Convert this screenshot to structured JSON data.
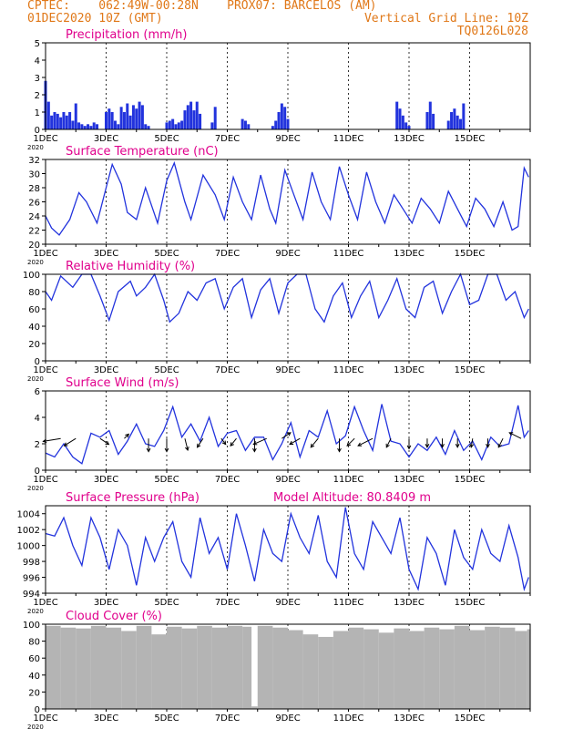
{
  "header": {
    "left1": "CPTEC:    062:49W-00:28N    PROX07: BARCELOS (AM)",
    "left2": "01DEC2020 10Z (GMT)",
    "right2": "Vertical Grid Line: 10Z",
    "right3": "TQ0126L028",
    "altitude": "Model Altitude: 80.8409 m"
  },
  "colors": {
    "header": "#e07818",
    "title": "#e0008c",
    "line": "#2233dd",
    "cloud": "#b4b4b4",
    "arrow": "#000000"
  },
  "x_tick_labels": [
    "1DEC",
    "3DEC",
    "5DEC",
    "7DEC",
    "9DEC",
    "11DEC",
    "13DEC",
    "15DEC"
  ],
  "year_label": "2020",
  "chart_data": [
    {
      "type": "bar",
      "title": "Precipitation (mm/h)",
      "ylim": [
        0,
        5
      ],
      "yticks": [
        0,
        1,
        2,
        3,
        4,
        5
      ],
      "x_days": [
        0,
        0.1,
        0.2,
        0.3,
        0.4,
        0.5,
        0.6,
        0.7,
        0.8,
        0.9,
        1.0,
        1.1,
        1.2,
        1.3,
        1.4,
        1.5,
        1.6,
        1.7,
        2.0,
        2.1,
        2.2,
        2.3,
        2.4,
        2.5,
        2.6,
        2.7,
        2.8,
        2.9,
        3.0,
        3.1,
        3.2,
        3.3,
        3.4,
        4.0,
        4.1,
        4.2,
        4.3,
        4.4,
        4.5,
        4.6,
        4.7,
        4.8,
        4.9,
        5.0,
        5.1,
        5.5,
        5.6,
        6.5,
        6.6,
        6.7,
        7.5,
        7.6,
        7.7,
        7.8,
        7.9,
        8.0,
        11.6,
        11.7,
        11.8,
        11.9,
        12.0,
        12.6,
        12.7,
        12.8,
        13.3,
        13.4,
        13.5,
        13.6,
        13.7,
        13.8
      ],
      "values": [
        2.8,
        1.6,
        0.8,
        1.0,
        0.9,
        0.7,
        1.0,
        0.8,
        1.0,
        0.5,
        1.5,
        0.4,
        0.3,
        0.2,
        0.3,
        0.2,
        0.4,
        0.3,
        1.0,
        1.2,
        1.0,
        0.5,
        0.3,
        1.3,
        1.0,
        1.5,
        0.8,
        1.4,
        1.2,
        1.6,
        1.4,
        0.3,
        0.2,
        0.4,
        0.5,
        0.6,
        0.3,
        0.4,
        0.5,
        1.1,
        1.4,
        1.6,
        1.1,
        1.6,
        0.9,
        0.4,
        1.3,
        0.6,
        0.5,
        0.3,
        0.2,
        0.5,
        1.0,
        1.5,
        1.3,
        0.6,
        1.6,
        1.2,
        0.8,
        0.4,
        0.2,
        1.0,
        1.6,
        0.9,
        0.5,
        1.0,
        1.2,
        0.8,
        0.6,
        1.5
      ]
    },
    {
      "type": "line",
      "title": "Surface Temperature (nC)",
      "ylim": [
        20,
        32
      ],
      "yticks": [
        20,
        22,
        24,
        26,
        28,
        30,
        32
      ],
      "x_days": [
        0,
        0.2,
        0.45,
        0.8,
        1.1,
        1.35,
        1.7,
        2.0,
        2.2,
        2.5,
        2.7,
        3.0,
        3.3,
        3.7,
        4.0,
        4.25,
        4.6,
        4.8,
        5.2,
        5.6,
        5.9,
        6.2,
        6.5,
        6.8,
        7.1,
        7.4,
        7.6,
        7.9,
        8.2,
        8.5,
        8.8,
        9.1,
        9.4,
        9.7,
        10.0,
        10.3,
        10.6,
        10.9,
        11.2,
        11.5,
        11.8,
        12.1,
        12.4,
        12.7,
        13.0,
        13.3,
        13.6,
        13.9,
        14.2,
        14.5,
        14.8,
        15.1,
        15.4,
        15.6,
        15.8,
        15.95
      ],
      "values": [
        24,
        22.3,
        21.3,
        23.5,
        27.3,
        26,
        23,
        28,
        31.3,
        28.5,
        24.5,
        23.5,
        28,
        23,
        29,
        31.5,
        26,
        23.5,
        29.8,
        27,
        23.5,
        29.5,
        26,
        23.5,
        29.8,
        25,
        23,
        30.5,
        27,
        23.5,
        30.2,
        26,
        23.5,
        31,
        27,
        23.5,
        30.2,
        26,
        23,
        27,
        25,
        23,
        26.5,
        25,
        23,
        27.5,
        25,
        22.5,
        26.5,
        25,
        22.5,
        26,
        22,
        22.5,
        30.8,
        29.5
      ]
    },
    {
      "type": "line",
      "title": "Relative Humidity (%)",
      "ylim": [
        0,
        100
      ],
      "yticks": [
        0,
        20,
        40,
        60,
        80,
        100
      ],
      "x_days": [
        0,
        0.2,
        0.5,
        0.9,
        1.2,
        1.5,
        1.8,
        2.1,
        2.4,
        2.8,
        3.0,
        3.3,
        3.6,
        3.9,
        4.1,
        4.4,
        4.7,
        5.0,
        5.3,
        5.6,
        5.9,
        6.2,
        6.5,
        6.8,
        7.1,
        7.4,
        7.7,
        8.0,
        8.3,
        8.6,
        8.9,
        9.2,
        9.5,
        9.8,
        10.1,
        10.4,
        10.7,
        11.0,
        11.3,
        11.6,
        11.9,
        12.2,
        12.5,
        12.8,
        13.1,
        13.4,
        13.7,
        14.0,
        14.3,
        14.6,
        14.9,
        15.2,
        15.5,
        15.8,
        15.95
      ],
      "values": [
        80,
        70,
        98,
        85,
        100,
        100,
        75,
        47,
        80,
        92,
        75,
        85,
        100,
        70,
        45,
        55,
        80,
        70,
        90,
        95,
        60,
        85,
        95,
        50,
        82,
        95,
        55,
        90,
        100,
        100,
        60,
        45,
        75,
        90,
        50,
        75,
        92,
        50,
        70,
        95,
        60,
        50,
        85,
        92,
        55,
        80,
        100,
        65,
        70,
        100,
        100,
        70,
        80,
        50,
        60
      ]
    },
    {
      "type": "line",
      "title": "Surface Wind (m/s)",
      "ylim": [
        0,
        6
      ],
      "yticks": [
        0,
        2,
        4,
        6
      ],
      "x_days": [
        0,
        0.3,
        0.6,
        0.9,
        1.2,
        1.5,
        1.8,
        2.1,
        2.4,
        2.7,
        3.0,
        3.3,
        3.6,
        3.9,
        4.2,
        4.5,
        4.8,
        5.1,
        5.4,
        5.7,
        6.0,
        6.3,
        6.6,
        6.9,
        7.2,
        7.5,
        7.8,
        8.1,
        8.4,
        8.7,
        9.0,
        9.3,
        9.6,
        9.9,
        10.2,
        10.5,
        10.8,
        11.1,
        11.4,
        11.7,
        12.0,
        12.3,
        12.6,
        12.9,
        13.2,
        13.5,
        13.8,
        14.1,
        14.4,
        14.7,
        15.0,
        15.3,
        15.6,
        15.8,
        15.95
      ],
      "values": [
        1.3,
        1.0,
        2.0,
        1.0,
        0.5,
        2.8,
        2.5,
        3.0,
        1.2,
        2.2,
        3.5,
        2.0,
        1.8,
        3.0,
        4.8,
        2.5,
        3.5,
        2.2,
        4.0,
        1.8,
        2.8,
        3.0,
        1.5,
        2.5,
        2.5,
        0.8,
        2.0,
        3.6,
        1.0,
        3.0,
        2.5,
        4.5,
        2.0,
        2.6,
        4.8,
        3.0,
        1.5,
        5.0,
        2.2,
        2.0,
        1.0,
        2.0,
        1.5,
        2.5,
        1.2,
        3.0,
        1.5,
        2.2,
        0.8,
        2.5,
        1.8,
        2.0,
        4.9,
        2.5,
        3.0
      ],
      "arrows": {
        "x_days": [
          0.5,
          1.0,
          1.8,
          2.6,
          3.4,
          4.0,
          4.6,
          5.2,
          5.8,
          6.3,
          6.9,
          7.3,
          7.8,
          8.4,
          9.0,
          9.7,
          10.2,
          10.8,
          11.4,
          12.0,
          12.6,
          13.1,
          13.6,
          14.1,
          14.6,
          15.1,
          15.7
        ],
        "u": [
          -1.2,
          -0.8,
          0.6,
          0.3,
          0,
          0,
          0.2,
          -0.4,
          0.3,
          -0.4,
          0,
          -0.9,
          0.6,
          -0.7,
          -0.5,
          0,
          -0.5,
          -1.0,
          -0.3,
          0,
          0,
          0,
          0,
          -0.1,
          0,
          -0.3,
          -0.8
        ],
        "v": [
          -0.2,
          -0.5,
          -0.4,
          0.3,
          -0.9,
          -0.9,
          -0.8,
          -0.6,
          -0.4,
          -0.5,
          -0.9,
          -0.4,
          0.4,
          -0.4,
          -0.6,
          -0.9,
          -0.5,
          -0.5,
          -0.6,
          -0.7,
          -0.6,
          -0.6,
          -0.6,
          -0.6,
          -0.6,
          -0.6,
          0.4
        ]
      }
    },
    {
      "type": "line",
      "title": "Surface Pressure (hPa)",
      "ylim": [
        994,
        1005
      ],
      "yticks": [
        994,
        996,
        998,
        1000,
        1002,
        1004
      ],
      "x_days": [
        0,
        0.3,
        0.6,
        0.9,
        1.2,
        1.5,
        1.8,
        2.1,
        2.4,
        2.7,
        3.0,
        3.3,
        3.6,
        3.9,
        4.2,
        4.5,
        4.8,
        5.1,
        5.4,
        5.7,
        6.0,
        6.3,
        6.6,
        6.9,
        7.2,
        7.5,
        7.8,
        8.1,
        8.4,
        8.7,
        9.0,
        9.3,
        9.6,
        9.9,
        10.2,
        10.5,
        10.8,
        11.1,
        11.4,
        11.7,
        12.0,
        12.3,
        12.6,
        12.9,
        13.2,
        13.5,
        13.8,
        14.1,
        14.4,
        14.7,
        15.0,
        15.3,
        15.6,
        15.8,
        15.95
      ],
      "values": [
        1001.5,
        1001.2,
        1003.5,
        1000,
        997.5,
        1003.5,
        1001,
        997,
        1002,
        1000,
        995,
        1001,
        998,
        1001,
        1003,
        998,
        996,
        1003.5,
        999,
        1001,
        997,
        1004,
        1000,
        995.5,
        1002,
        999,
        998,
        1004,
        1001,
        999,
        1003.8,
        998,
        996,
        1004.8,
        999,
        997,
        1003,
        1001,
        999,
        1003.5,
        997,
        994.5,
        1001,
        999,
        995,
        1002,
        998.5,
        997,
        1002,
        999,
        998,
        1002.5,
        998.5,
        994.5,
        996
      ]
    },
    {
      "type": "bar",
      "title": "Cloud Cover (%)",
      "ylim": [
        0,
        100
      ],
      "yticks": [
        0,
        20,
        40,
        60,
        80,
        100
      ],
      "x_days": [
        0,
        0.5,
        1.0,
        1.5,
        2.0,
        2.5,
        3.0,
        3.5,
        4.0,
        4.5,
        5.0,
        5.5,
        6.0,
        6.5,
        6.8,
        7.0,
        7.5,
        8.0,
        8.5,
        9.0,
        9.5,
        10.0,
        10.5,
        11.0,
        11.5,
        12.0,
        12.5,
        13.0,
        13.5,
        14.0,
        14.5,
        15.0,
        15.5,
        15.9
      ],
      "values": [
        98,
        96,
        95,
        98,
        96,
        92,
        98,
        88,
        97,
        95,
        98,
        96,
        98,
        97,
        3,
        98,
        96,
        93,
        88,
        85,
        92,
        96,
        94,
        90,
        95,
        92,
        96,
        94,
        98,
        93,
        97,
        96,
        92,
        94
      ]
    }
  ]
}
